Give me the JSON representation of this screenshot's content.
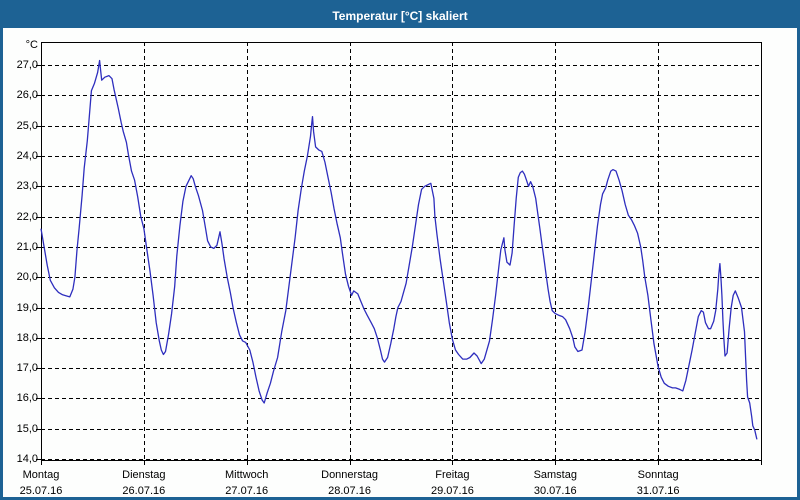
{
  "window": {
    "title": "Temperatur [°C] skaliert"
  },
  "colors": {
    "titlebar_bg": "#1d6294",
    "window_border": "#1d6294",
    "plot_line": "#2e2ebe",
    "grid": "#000000",
    "text": "#000000",
    "background": "#fdfefd"
  },
  "chart_data": {
    "type": "line",
    "title": "Temperatur [°C] skaliert",
    "y_unit_label": "°C",
    "ylabel": "Temperatur [°C]",
    "xlabel": "",
    "grid": "dashed-black-on-white",
    "legend_position": "none",
    "ylim": [
      13.97,
      27.76
    ],
    "x_range_days": [
      0,
      7
    ],
    "y_ticks": [
      {
        "value": 27,
        "label": "27,0"
      },
      {
        "value": 26,
        "label": "26,0"
      },
      {
        "value": 25,
        "label": "25,0"
      },
      {
        "value": 24,
        "label": "24,0"
      },
      {
        "value": 23,
        "label": "23,0"
      },
      {
        "value": 22,
        "label": "22,0"
      },
      {
        "value": 21,
        "label": "21,0"
      },
      {
        "value": 20,
        "label": "20,0"
      },
      {
        "value": 19,
        "label": "19,0"
      },
      {
        "value": 18,
        "label": "18,0"
      },
      {
        "value": 17,
        "label": "17,0"
      },
      {
        "value": 16,
        "label": "16,0"
      },
      {
        "value": 15,
        "label": "15,0"
      },
      {
        "value": 14,
        "label": "14,0"
      }
    ],
    "x_days": [
      {
        "label": "Montag",
        "date": "25.07.16"
      },
      {
        "label": "Dienstag",
        "date": "26.07.16"
      },
      {
        "label": "Mittwoch",
        "date": "27.07.16"
      },
      {
        "label": "Donnerstag",
        "date": "28.07.16"
      },
      {
        "label": "Freitag",
        "date": "29.07.16"
      },
      {
        "label": "Samstag",
        "date": "30.07.16"
      },
      {
        "label": "Sonntag",
        "date": "31.07.16"
      }
    ],
    "series": [
      {
        "name": "Temperatur",
        "color": "#2e2ebe",
        "x_unit": "days_since_monday_00h",
        "y_unit": "degC",
        "points": [
          [
            0.0,
            21.6
          ],
          [
            0.03,
            21.0
          ],
          [
            0.06,
            20.4
          ],
          [
            0.09,
            19.9
          ],
          [
            0.13,
            19.65
          ],
          [
            0.17,
            19.5
          ],
          [
            0.21,
            19.42
          ],
          [
            0.25,
            19.38
          ],
          [
            0.28,
            19.35
          ],
          [
            0.31,
            19.6
          ],
          [
            0.33,
            20.0
          ],
          [
            0.35,
            20.9
          ],
          [
            0.37,
            21.6
          ],
          [
            0.4,
            22.7
          ],
          [
            0.42,
            23.6
          ],
          [
            0.45,
            24.5
          ],
          [
            0.47,
            25.3
          ],
          [
            0.49,
            26.15
          ],
          [
            0.52,
            26.4
          ],
          [
            0.55,
            26.75
          ],
          [
            0.57,
            27.15
          ],
          [
            0.58,
            26.8
          ],
          [
            0.59,
            26.5
          ],
          [
            0.62,
            26.6
          ],
          [
            0.66,
            26.65
          ],
          [
            0.69,
            26.55
          ],
          [
            0.71,
            26.2
          ],
          [
            0.75,
            25.6
          ],
          [
            0.78,
            25.1
          ],
          [
            0.8,
            24.8
          ],
          [
            0.83,
            24.45
          ],
          [
            0.85,
            24.05
          ],
          [
            0.88,
            23.5
          ],
          [
            0.91,
            23.2
          ],
          [
            0.94,
            22.65
          ],
          [
            0.97,
            22.0
          ],
          [
            1.0,
            21.6
          ],
          [
            1.03,
            20.9
          ],
          [
            1.06,
            20.2
          ],
          [
            1.09,
            19.4
          ],
          [
            1.12,
            18.5
          ],
          [
            1.15,
            17.9
          ],
          [
            1.17,
            17.6
          ],
          [
            1.19,
            17.45
          ],
          [
            1.21,
            17.55
          ],
          [
            1.24,
            18.1
          ],
          [
            1.27,
            18.8
          ],
          [
            1.3,
            19.7
          ],
          [
            1.32,
            20.7
          ],
          [
            1.35,
            21.7
          ],
          [
            1.38,
            22.5
          ],
          [
            1.41,
            23.0
          ],
          [
            1.46,
            23.35
          ],
          [
            1.48,
            23.25
          ],
          [
            1.5,
            23.0
          ],
          [
            1.53,
            22.7
          ],
          [
            1.57,
            22.2
          ],
          [
            1.6,
            21.6
          ],
          [
            1.62,
            21.2
          ],
          [
            1.65,
            21.0
          ],
          [
            1.68,
            20.95
          ],
          [
            1.71,
            21.05
          ],
          [
            1.74,
            21.5
          ],
          [
            1.76,
            21.1
          ],
          [
            1.78,
            20.6
          ],
          [
            1.81,
            20.0
          ],
          [
            1.84,
            19.5
          ],
          [
            1.87,
            18.95
          ],
          [
            1.9,
            18.5
          ],
          [
            1.93,
            18.1
          ],
          [
            1.96,
            17.9
          ],
          [
            1.99,
            17.85
          ],
          [
            2.03,
            17.6
          ],
          [
            2.06,
            17.2
          ],
          [
            2.09,
            16.7
          ],
          [
            2.12,
            16.25
          ],
          [
            2.15,
            15.95
          ],
          [
            2.17,
            15.85
          ],
          [
            2.2,
            16.2
          ],
          [
            2.23,
            16.5
          ],
          [
            2.26,
            16.9
          ],
          [
            2.3,
            17.35
          ],
          [
            2.34,
            18.2
          ],
          [
            2.38,
            18.9
          ],
          [
            2.41,
            19.7
          ],
          [
            2.44,
            20.5
          ],
          [
            2.47,
            21.3
          ],
          [
            2.5,
            22.2
          ],
          [
            2.53,
            22.9
          ],
          [
            2.56,
            23.5
          ],
          [
            2.59,
            24.0
          ],
          [
            2.62,
            24.65
          ],
          [
            2.63,
            25.0
          ],
          [
            2.64,
            25.3
          ],
          [
            2.65,
            24.8
          ],
          [
            2.67,
            24.3
          ],
          [
            2.7,
            24.2
          ],
          [
            2.73,
            24.15
          ],
          [
            2.76,
            23.8
          ],
          [
            2.79,
            23.3
          ],
          [
            2.82,
            22.8
          ],
          [
            2.85,
            22.25
          ],
          [
            2.88,
            21.75
          ],
          [
            2.91,
            21.3
          ],
          [
            2.93,
            20.8
          ],
          [
            2.96,
            20.1
          ],
          [
            2.99,
            19.7
          ],
          [
            3.02,
            19.4
          ],
          [
            3.04,
            19.55
          ],
          [
            3.08,
            19.45
          ],
          [
            3.11,
            19.2
          ],
          [
            3.14,
            18.95
          ],
          [
            3.17,
            18.75
          ],
          [
            3.21,
            18.5
          ],
          [
            3.24,
            18.3
          ],
          [
            3.27,
            18.0
          ],
          [
            3.3,
            17.6
          ],
          [
            3.32,
            17.3
          ],
          [
            3.34,
            17.2
          ],
          [
            3.37,
            17.35
          ],
          [
            3.4,
            17.8
          ],
          [
            3.43,
            18.3
          ],
          [
            3.45,
            18.7
          ],
          [
            3.47,
            19.0
          ],
          [
            3.5,
            19.2
          ],
          [
            3.52,
            19.45
          ],
          [
            3.55,
            19.8
          ],
          [
            3.58,
            20.4
          ],
          [
            3.61,
            21.0
          ],
          [
            3.64,
            21.7
          ],
          [
            3.67,
            22.4
          ],
          [
            3.7,
            22.9
          ],
          [
            3.73,
            23.0
          ],
          [
            3.76,
            23.05
          ],
          [
            3.79,
            23.1
          ],
          [
            3.82,
            22.6
          ],
          [
            3.83,
            22.0
          ],
          [
            3.85,
            21.4
          ],
          [
            3.88,
            20.6
          ],
          [
            3.91,
            19.9
          ],
          [
            3.94,
            19.2
          ],
          [
            3.97,
            18.5
          ],
          [
            4.0,
            17.95
          ],
          [
            4.03,
            17.6
          ],
          [
            4.06,
            17.45
          ],
          [
            4.1,
            17.3
          ],
          [
            4.14,
            17.3
          ],
          [
            4.17,
            17.35
          ],
          [
            4.21,
            17.5
          ],
          [
            4.24,
            17.4
          ],
          [
            4.28,
            17.15
          ],
          [
            4.31,
            17.3
          ],
          [
            4.36,
            17.9
          ],
          [
            4.39,
            18.6
          ],
          [
            4.42,
            19.4
          ],
          [
            4.45,
            20.3
          ],
          [
            4.47,
            20.9
          ],
          [
            4.5,
            21.3
          ],
          [
            4.51,
            20.9
          ],
          [
            4.53,
            20.5
          ],
          [
            4.56,
            20.4
          ],
          [
            4.58,
            20.8
          ],
          [
            4.6,
            21.7
          ],
          [
            4.62,
            22.6
          ],
          [
            4.64,
            23.3
          ],
          [
            4.66,
            23.45
          ],
          [
            4.68,
            23.5
          ],
          [
            4.7,
            23.4
          ],
          [
            4.72,
            23.2
          ],
          [
            4.74,
            23.0
          ],
          [
            4.76,
            23.15
          ],
          [
            4.78,
            23.0
          ],
          [
            4.81,
            22.6
          ],
          [
            4.83,
            22.1
          ],
          [
            4.85,
            21.6
          ],
          [
            4.87,
            21.1
          ],
          [
            4.89,
            20.6
          ],
          [
            4.91,
            20.1
          ],
          [
            4.93,
            19.6
          ],
          [
            4.95,
            19.2
          ],
          [
            4.97,
            18.9
          ],
          [
            5.0,
            18.8
          ],
          [
            5.03,
            18.75
          ],
          [
            5.07,
            18.7
          ],
          [
            5.1,
            18.6
          ],
          [
            5.14,
            18.3
          ],
          [
            5.17,
            18.0
          ],
          [
            5.19,
            17.7
          ],
          [
            5.22,
            17.55
          ],
          [
            5.26,
            17.6
          ],
          [
            5.29,
            18.2
          ],
          [
            5.32,
            19.0
          ],
          [
            5.35,
            19.9
          ],
          [
            5.38,
            20.8
          ],
          [
            5.41,
            21.7
          ],
          [
            5.44,
            22.4
          ],
          [
            5.46,
            22.75
          ],
          [
            5.49,
            22.95
          ],
          [
            5.51,
            23.2
          ],
          [
            5.54,
            23.5
          ],
          [
            5.56,
            23.55
          ],
          [
            5.59,
            23.5
          ],
          [
            5.62,
            23.2
          ],
          [
            5.65,
            22.85
          ],
          [
            5.68,
            22.4
          ],
          [
            5.71,
            22.05
          ],
          [
            5.74,
            21.9
          ],
          [
            5.77,
            21.7
          ],
          [
            5.8,
            21.45
          ],
          [
            5.83,
            21.0
          ],
          [
            5.85,
            20.55
          ],
          [
            5.87,
            20.0
          ],
          [
            5.9,
            19.4
          ],
          [
            5.93,
            18.6
          ],
          [
            5.96,
            17.8
          ],
          [
            6.0,
            17.05
          ],
          [
            6.03,
            16.7
          ],
          [
            6.06,
            16.5
          ],
          [
            6.1,
            16.4
          ],
          [
            6.14,
            16.35
          ],
          [
            6.17,
            16.35
          ],
          [
            6.21,
            16.3
          ],
          [
            6.24,
            16.25
          ],
          [
            6.27,
            16.6
          ],
          [
            6.3,
            17.1
          ],
          [
            6.33,
            17.6
          ],
          [
            6.36,
            18.15
          ],
          [
            6.39,
            18.7
          ],
          [
            6.42,
            18.9
          ],
          [
            6.44,
            18.85
          ],
          [
            6.46,
            18.5
          ],
          [
            6.49,
            18.3
          ],
          [
            6.51,
            18.3
          ],
          [
            6.54,
            18.55
          ],
          [
            6.56,
            18.9
          ],
          [
            6.58,
            19.6
          ],
          [
            6.59,
            20.1
          ],
          [
            6.6,
            20.45
          ],
          [
            6.61,
            20.0
          ],
          [
            6.62,
            19.4
          ],
          [
            6.63,
            18.6
          ],
          [
            6.64,
            17.9
          ],
          [
            6.65,
            17.4
          ],
          [
            6.67,
            17.5
          ],
          [
            6.69,
            18.3
          ],
          [
            6.71,
            19.0
          ],
          [
            6.73,
            19.4
          ],
          [
            6.75,
            19.55
          ],
          [
            6.78,
            19.3
          ],
          [
            6.81,
            19.0
          ],
          [
            6.84,
            18.2
          ],
          [
            6.85,
            17.35
          ],
          [
            6.86,
            16.6
          ],
          [
            6.87,
            16.05
          ],
          [
            6.89,
            15.85
          ],
          [
            6.91,
            15.4
          ],
          [
            6.92,
            15.1
          ],
          [
            6.94,
            14.95
          ],
          [
            6.96,
            14.65
          ]
        ]
      }
    ]
  }
}
